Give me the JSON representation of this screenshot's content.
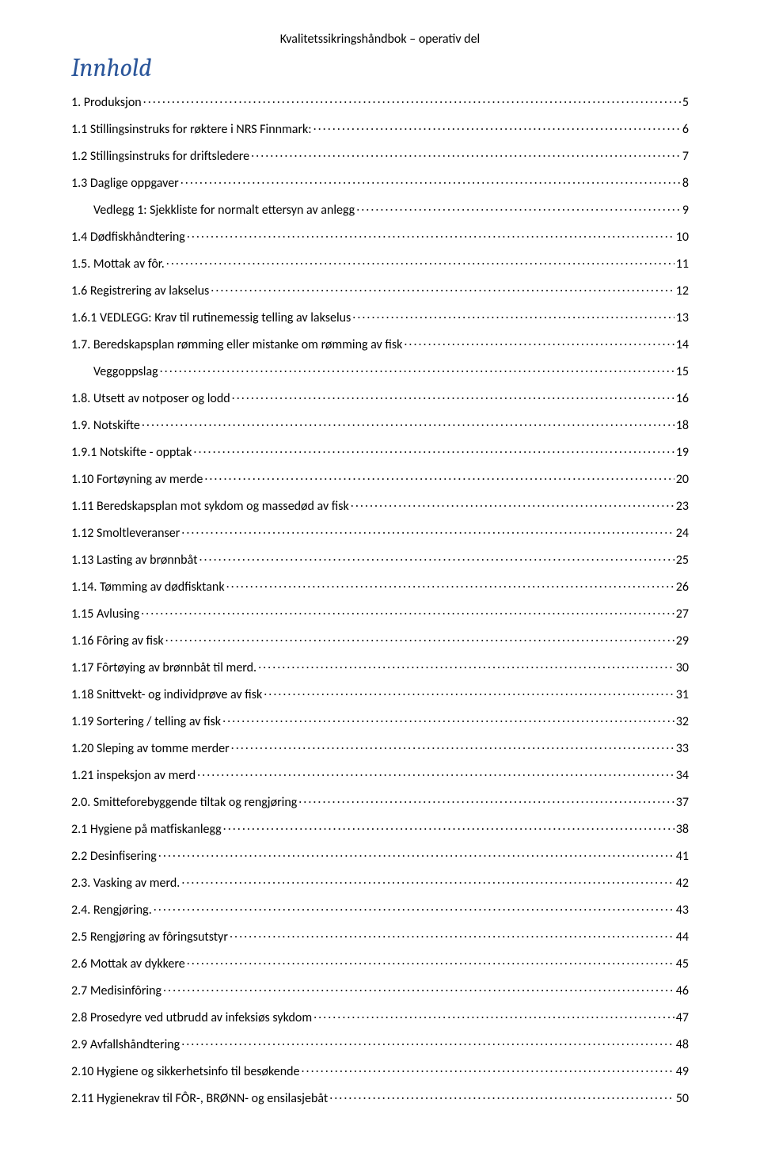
{
  "header": {
    "title": "Kvalitetssikringshåndbok – operativ del"
  },
  "heading": {
    "text": "Innhold",
    "color": "#2b569a"
  },
  "toc": {
    "entries": [
      {
        "label": "1. Produksjon",
        "page": "5",
        "indent": 0
      },
      {
        "label": "1.1 Stillingsinstruks for røktere i NRS Finnmark:",
        "page": "6",
        "indent": 0
      },
      {
        "label": "1.2 Stillingsinstruks for driftsledere",
        "page": "7",
        "indent": 0
      },
      {
        "label": "1.3 Daglige oppgaver",
        "page": "8",
        "indent": 0
      },
      {
        "label": "Vedlegg 1: Sjekkliste for normalt ettersyn av anlegg",
        "page": "9",
        "indent": 1
      },
      {
        "label": "1.4 Dødfiskhåndtering",
        "page": "10",
        "indent": 0
      },
      {
        "label": "1.5. Mottak av fôr.",
        "page": "11",
        "indent": 0
      },
      {
        "label": "1.6 Registrering av lakselus",
        "page": "12",
        "indent": 0
      },
      {
        "label": "1.6.1 VEDLEGG: Krav til rutinemessig telling av lakselus",
        "page": "13",
        "indent": 0
      },
      {
        "label": "1.7. Beredskapsplan rømming eller mistanke om rømming av fisk",
        "page": "14",
        "indent": 0
      },
      {
        "label": "Veggoppslag",
        "page": "15",
        "indent": 1
      },
      {
        "label": "1.8. Utsett av notposer og lodd",
        "page": "16",
        "indent": 0
      },
      {
        "label": "1.9. Notskifte",
        "page": "18",
        "indent": 0
      },
      {
        "label": "1.9.1 Notskifte - opptak",
        "page": "19",
        "indent": 0
      },
      {
        "label": "1.10 Fortøyning av merde",
        "page": "20",
        "indent": 0
      },
      {
        "label": "1.11 Beredskapsplan mot sykdom og massedød av fisk",
        "page": "23",
        "indent": 0
      },
      {
        "label": "1.12 Smoltleveranser",
        "page": "24",
        "indent": 0
      },
      {
        "label": "1.13 Lasting av brønnbåt",
        "page": "25",
        "indent": 0
      },
      {
        "label": "1.14. Tømming av dødfisktank",
        "page": "26",
        "indent": 0
      },
      {
        "label": "1.15 Avlusing",
        "page": "27",
        "indent": 0
      },
      {
        "label": "1.16 Fôring av fisk",
        "page": "29",
        "indent": 0
      },
      {
        "label": "1.17 Fôrtøying av brønnbåt til merd.",
        "page": "30",
        "indent": 0
      },
      {
        "label": "1.18 Snittvekt- og individprøve av fisk",
        "page": "31",
        "indent": 0
      },
      {
        "label": "1.19 Sortering / telling av fisk",
        "page": "32",
        "indent": 0
      },
      {
        "label": "1.20 Sleping av tomme merder",
        "page": "33",
        "indent": 0
      },
      {
        "label": "1.21 inspeksjon av merd",
        "page": "34",
        "indent": 0
      },
      {
        "label": "2.0. Smitteforebyggende tiltak og rengjøring",
        "page": "37",
        "indent": 0
      },
      {
        "label": "2.1 Hygiene på matfiskanlegg",
        "page": "38",
        "indent": 0
      },
      {
        "label": "2.2 Desinfisering",
        "page": "41",
        "indent": 0
      },
      {
        "label": "2.3. Vasking av merd.",
        "page": "42",
        "indent": 0
      },
      {
        "label": "2.4. Rengjøring.",
        "page": "43",
        "indent": 0
      },
      {
        "label": "2.5 Rengjøring av fôringsutstyr",
        "page": "44",
        "indent": 0
      },
      {
        "label": "2.6 Mottak av dykkere",
        "page": "45",
        "indent": 0
      },
      {
        "label": "2.7 Medisinfôring",
        "page": "46",
        "indent": 0
      },
      {
        "label": "2.8 Prosedyre ved utbrudd av infeksiøs sykdom",
        "page": "47",
        "indent": 0
      },
      {
        "label": "2.9 Avfallshåndtering",
        "page": "48",
        "indent": 0
      },
      {
        "label": "2.10 Hygiene og sikkerhetsinfo til besøkende",
        "page": "49",
        "indent": 0
      },
      {
        "label": "2.11 Hygienekrav til FÔR-, BRØNN- og ensilasjebåt",
        "page": "50",
        "indent": 0
      }
    ]
  }
}
